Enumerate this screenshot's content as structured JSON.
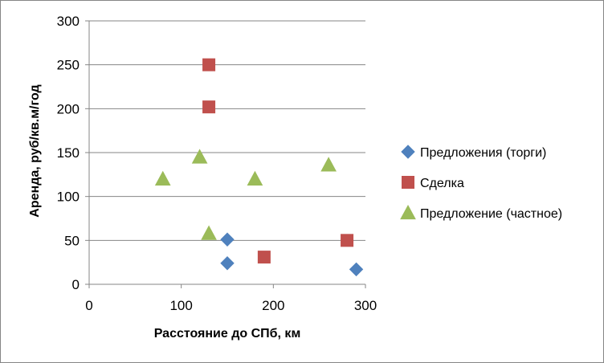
{
  "chart_data": {
    "type": "scatter",
    "title": "",
    "xlabel": "Расстояние до СПб, км",
    "ylabel": "Аренда, руб/кв.м/год",
    "xlim": [
      0,
      300
    ],
    "ylim": [
      0,
      300
    ],
    "xticks": [
      0,
      100,
      200,
      300
    ],
    "yticks": [
      0,
      50,
      100,
      150,
      200,
      250,
      300
    ],
    "grid": "horizontal",
    "legend_position": "right",
    "series": [
      {
        "name": "Предложения (торги)",
        "marker": "diamond",
        "color": "#4f81bd",
        "points": [
          [
            150,
            51
          ],
          [
            150,
            24
          ],
          [
            290,
            17
          ]
        ]
      },
      {
        "name": "Сделка",
        "marker": "square",
        "color": "#c0504d",
        "points": [
          [
            130,
            250
          ],
          [
            130,
            202
          ],
          [
            190,
            31
          ],
          [
            280,
            50
          ]
        ]
      },
      {
        "name": "Предложение (частное)",
        "marker": "triangle",
        "color": "#9bbb59",
        "points": [
          [
            80,
            120
          ],
          [
            120,
            145
          ],
          [
            180,
            120
          ],
          [
            260,
            136
          ],
          [
            130,
            58
          ]
        ]
      }
    ]
  }
}
